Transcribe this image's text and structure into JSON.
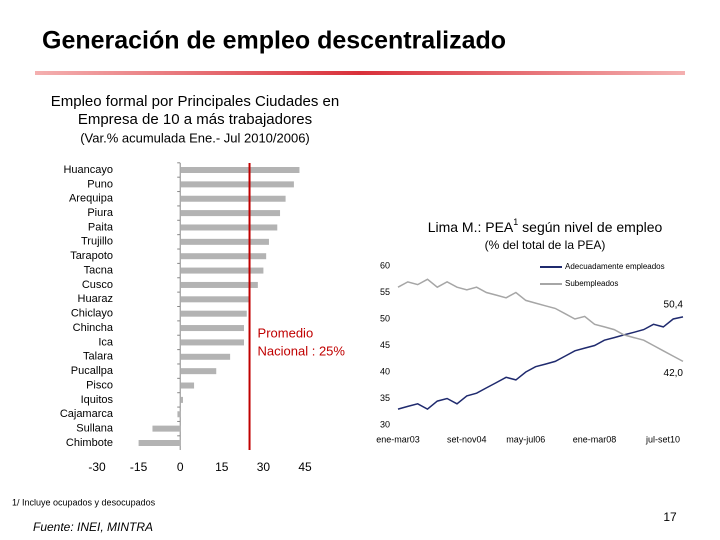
{
  "title": "Generación de empleo descentralizado",
  "footnote": "1/ Incluye ocupados y desocupados",
  "source": "Fuente: INEI, MINTRA",
  "page_number": "17",
  "chart_data": [
    {
      "type": "hbar",
      "title": [
        "Empleo formal por Principales Ciudades en",
        "Empresa de 10 a más trabajadores"
      ],
      "subtitle": "(Var.% acumulada Ene.- Jul 2010/2006)",
      "categories": [
        "Huancayo",
        "Puno",
        "Arequipa",
        "Piura",
        "Paita",
        "Trujillo",
        "Tarapoto",
        "Tacna",
        "Cusco",
        "Huaraz",
        "Chiclayo",
        "Chincha",
        "Ica",
        "Talara",
        "Pucallpa",
        "Pisco",
        "Iquitos",
        "Cajamarca",
        "Sullana",
        "Chimbote"
      ],
      "values": [
        43,
        41,
        38,
        36,
        35,
        32,
        31,
        30,
        28,
        25,
        24,
        23,
        23,
        18,
        13,
        5,
        1,
        -1,
        -10,
        -15
      ],
      "color": "#b3b3b3",
      "xlim": [
        -30,
        45
      ],
      "xticks": [
        -30,
        -15,
        0,
        15,
        30,
        45
      ],
      "reference_value": 25,
      "reference_label": [
        "Promedio",
        "Nacional : 25%"
      ],
      "reference_color": "#c00000"
    },
    {
      "type": "line",
      "title": [
        "Lima M.: PEA",
        "1",
        " según nivel de empleo"
      ],
      "subtitle": "(% del total de la PEA)",
      "categories": [
        "ene-mar03",
        null,
        null,
        null,
        null,
        null,
        null,
        "set-nov04",
        null,
        null,
        null,
        null,
        null,
        "may-jul06",
        null,
        null,
        null,
        null,
        null,
        null,
        "ene-mar08",
        null,
        null,
        null,
        null,
        null,
        null,
        null,
        null,
        "jul-set10"
      ],
      "ylim": [
        30,
        60
      ],
      "yticks": [
        30,
        35,
        40,
        45,
        50,
        55,
        60
      ],
      "series": [
        {
          "name": "Adecuadamente empleados",
          "color": "#1f2a6e",
          "values": [
            33,
            33.5,
            34,
            33,
            34.5,
            35,
            34,
            35.5,
            36,
            37,
            38,
            39,
            38.5,
            40,
            41,
            41.5,
            42,
            43,
            44,
            44.5,
            45,
            46,
            46.5,
            47,
            47.5,
            48,
            49,
            48.5,
            50,
            50.4
          ],
          "value_labels": [
            null,
            null,
            null,
            null,
            null,
            null,
            null,
            null,
            null,
            null,
            null,
            null,
            null,
            null,
            null,
            null,
            null,
            null,
            null,
            null,
            null,
            null,
            null,
            null,
            null,
            null,
            null,
            null,
            null,
            "50,4"
          ]
        },
        {
          "name": "Subempleados",
          "color": "#a6a6a6",
          "values": [
            56,
            57,
            56.5,
            57.5,
            56,
            57,
            56,
            55.5,
            56,
            55,
            54.5,
            54,
            55,
            53.5,
            53,
            52.5,
            52,
            51,
            50,
            50.5,
            49,
            48.5,
            48,
            47,
            46.5,
            46,
            45,
            44,
            43,
            42.0
          ],
          "value_labels": [
            null,
            null,
            null,
            null,
            null,
            null,
            null,
            null,
            null,
            null,
            null,
            null,
            null,
            null,
            null,
            null,
            null,
            null,
            null,
            null,
            null,
            null,
            null,
            null,
            null,
            null,
            null,
            null,
            null,
            "42,0"
          ]
        }
      ]
    }
  ]
}
